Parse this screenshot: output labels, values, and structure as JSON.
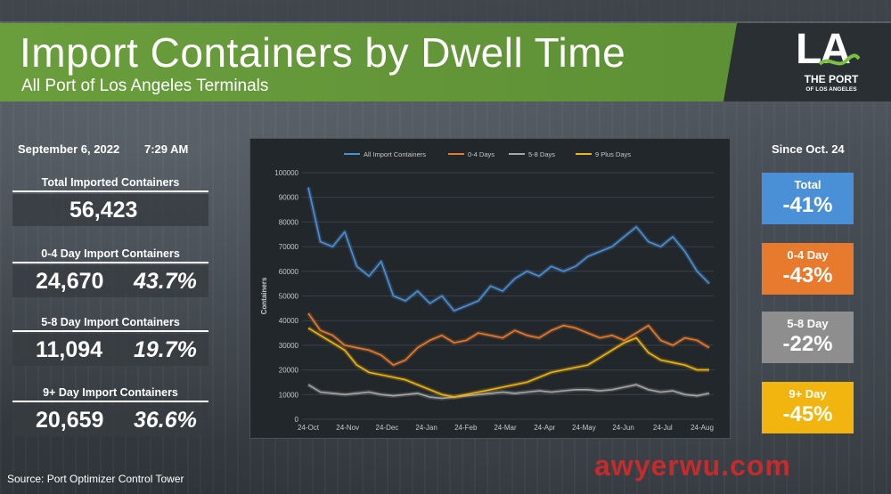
{
  "header": {
    "title": "Import Containers by Dwell Time",
    "subtitle": "All Port of Los Angeles Terminals"
  },
  "logo": {
    "mark": "LA",
    "name": "THE PORT",
    "sub": "OF LOS ANGELES"
  },
  "snapshot": {
    "date": "September 6, 2022",
    "time": "7:29 AM"
  },
  "stats": [
    {
      "label": "Total Imported Containers",
      "value": "56,423",
      "pct": ""
    },
    {
      "label": "0-4 Day Import Containers",
      "value": "24,670",
      "pct": "43.7%"
    },
    {
      "label": "5-8 Day Import Containers",
      "value": "11,094",
      "pct": "19.7%"
    },
    {
      "label": "9+ Day Import Containers",
      "value": "20,659",
      "pct": "36.6%"
    }
  ],
  "since": {
    "heading": "Since Oct. 24",
    "cards": [
      {
        "label": "Total",
        "value": "-41%",
        "color": "#4a90d6"
      },
      {
        "label": "0-4 Day",
        "value": "-43%",
        "color": "#e87a2e"
      },
      {
        "label": "5-8 Day",
        "value": "-22%",
        "color": "#8e8e8e"
      },
      {
        "label": "9+ Day",
        "value": "-45%",
        "color": "#f2b50f"
      }
    ]
  },
  "source": "Source: Port Optimizer Control Tower",
  "watermark": "awyerwu.com",
  "chart_data": {
    "type": "line",
    "title": "",
    "xlabel": "",
    "ylabel": "Containers",
    "ylim": [
      0,
      100000
    ],
    "yticks": [
      "0",
      "10000",
      "20000",
      "30000",
      "40000",
      "50000",
      "60000",
      "70000",
      "80000",
      "90000",
      "100000"
    ],
    "xticks": [
      "24-Oct",
      "24-Nov",
      "24-Dec",
      "24-Jan",
      "24-Feb",
      "24-Mar",
      "24-Apr",
      "24-May",
      "24-Jun",
      "24-Jul",
      "24-Aug"
    ],
    "grid": true,
    "legend": "top",
    "series": [
      {
        "name": "All Import Containers",
        "color": "#4a90d6",
        "values": [
          94000,
          72000,
          70000,
          76000,
          62000,
          58000,
          64000,
          50000,
          48000,
          52000,
          47000,
          50000,
          44000,
          46000,
          48000,
          54000,
          52000,
          57000,
          60000,
          58000,
          62000,
          60000,
          62000,
          66000,
          68000,
          70000,
          74000,
          78000,
          72000,
          70000,
          74000,
          68000,
          60000,
          55000
        ]
      },
      {
        "name": "0-4 Days",
        "color": "#e87a2e",
        "values": [
          43000,
          36000,
          34000,
          30000,
          29000,
          28000,
          26000,
          22000,
          24000,
          29000,
          32000,
          34000,
          31000,
          32000,
          35000,
          34000,
          33000,
          36000,
          34000,
          33000,
          36000,
          38000,
          37000,
          35000,
          33000,
          34000,
          32000,
          35000,
          38000,
          32000,
          30000,
          33000,
          32000,
          29000
        ]
      },
      {
        "name": "5-8 Days",
        "color": "#a6a6a6",
        "values": [
          14000,
          11000,
          10500,
          10000,
          10500,
          11000,
          10000,
          9500,
          10000,
          10500,
          9000,
          8500,
          9000,
          9500,
          10000,
          10500,
          11000,
          10500,
          11000,
          11500,
          11000,
          11500,
          12000,
          12000,
          11500,
          12000,
          13000,
          14000,
          12000,
          11000,
          11500,
          10000,
          9500,
          10500
        ]
      },
      {
        "name": "9 Plus Days",
        "color": "#f2b50f",
        "values": [
          37000,
          34000,
          31000,
          28000,
          22000,
          19000,
          18000,
          17000,
          16000,
          14000,
          12000,
          10000,
          9000,
          10000,
          11000,
          12000,
          13000,
          14000,
          15000,
          17000,
          19000,
          20000,
          21000,
          22000,
          25000,
          28000,
          31000,
          33000,
          27000,
          24000,
          23000,
          22000,
          20000,
          20000
        ]
      }
    ]
  }
}
